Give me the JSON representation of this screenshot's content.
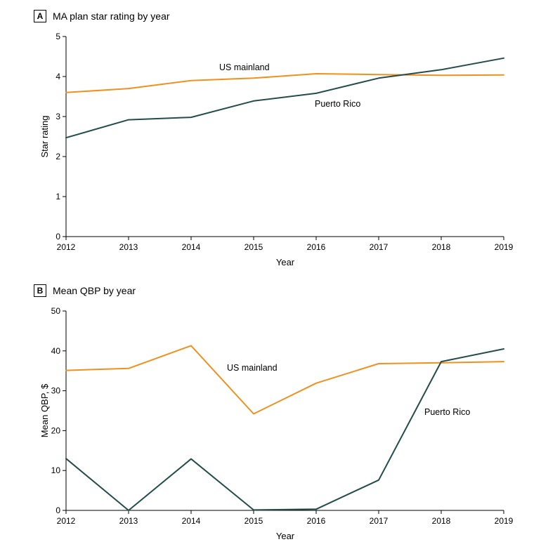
{
  "chart_data": [
    {
      "type": "line",
      "panel_letter": "A",
      "title": "MA plan star rating by year",
      "xlabel": "Year",
      "ylabel": "Star rating",
      "x": [
        "2012",
        "2013",
        "2014",
        "2015",
        "2016",
        "2017",
        "2018",
        "2019"
      ],
      "ylim": [
        0,
        5
      ],
      "yticks": [
        "0",
        "1",
        "2",
        "3",
        "4",
        "5"
      ],
      "grid": false,
      "series": [
        {
          "name": "US mainland",
          "color": "#f0901e",
          "values": [
            3.6,
            3.7,
            3.9,
            3.96,
            4.07,
            4.05,
            4.03,
            4.04
          ]
        },
        {
          "name": "Puerto Rico",
          "color": "#234d4a",
          "values": [
            2.47,
            2.92,
            2.98,
            3.39,
            3.58,
            3.96,
            4.17,
            4.46
          ]
        }
      ]
    },
    {
      "type": "line",
      "panel_letter": "B",
      "title": "Mean QBP by year",
      "xlabel": "Year",
      "ylabel": "Mean QBP, $",
      "x": [
        "2012",
        "2013",
        "2014",
        "2015",
        "2016",
        "2017",
        "2018",
        "2019"
      ],
      "ylim": [
        0,
        50
      ],
      "yticks": [
        "0",
        "10",
        "20",
        "30",
        "40",
        "50"
      ],
      "grid": false,
      "series": [
        {
          "name": "US mainland",
          "color": "#f0901e",
          "values": [
            35.1,
            35.6,
            41.3,
            24.2,
            31.9,
            36.8,
            37.0,
            37.3
          ]
        },
        {
          "name": "Puerto Rico",
          "color": "#234d4a",
          "values": [
            13.0,
            0.0,
            12.9,
            0.1,
            0.3,
            7.6,
            37.3,
            40.5
          ]
        }
      ]
    }
  ]
}
